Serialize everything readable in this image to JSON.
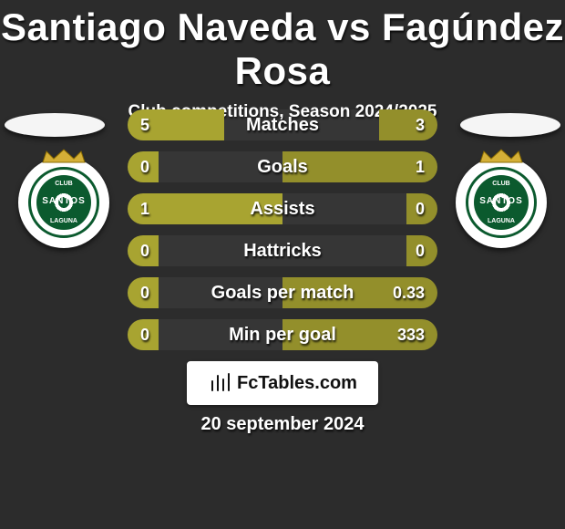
{
  "title": "Santiago Naveda vs Fagúndez Rosa",
  "subtitle": "Club competitions, Season 2024/2025",
  "date": "20 september 2024",
  "branding": "FcTables.com",
  "colors": {
    "left_bar": "#a8a431",
    "right_bar": "#938f2b",
    "track": "rgba(255,255,255,0.05)",
    "background": "#2c2c2c",
    "badge_green": "#0b5a2e",
    "badge_gold": "#d4af37"
  },
  "club": {
    "top": "CLUB",
    "mid": "SANTOS",
    "bot": "LAGUNA"
  },
  "stats": [
    {
      "label": "Matches",
      "left_val": "5",
      "right_val": "3",
      "left_pct": 62.5,
      "right_pct": 37.5
    },
    {
      "label": "Goals",
      "left_val": "0",
      "right_val": "1",
      "left_pct": 20,
      "right_pct": 100
    },
    {
      "label": "Assists",
      "left_val": "1",
      "right_val": "0",
      "left_pct": 100,
      "right_pct": 20
    },
    {
      "label": "Hattricks",
      "left_val": "0",
      "right_val": "0",
      "left_pct": 20,
      "right_pct": 20
    },
    {
      "label": "Goals per match",
      "left_val": "0",
      "right_val": "0.33",
      "left_pct": 20,
      "right_pct": 100
    },
    {
      "label": "Min per goal",
      "left_val": "0",
      "right_val": "333",
      "left_pct": 20,
      "right_pct": 100
    }
  ]
}
